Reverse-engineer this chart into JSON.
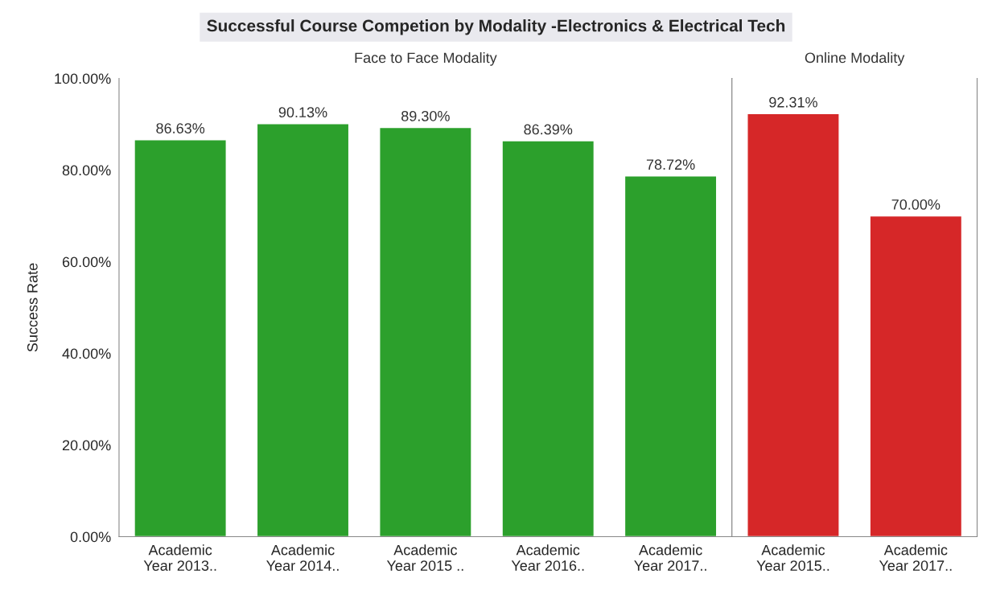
{
  "chart_data": [
    {
      "type": "bar",
      "title": "Successful Course Competion by Modality -Electronics & Electrical Tech",
      "subtitle": "Face to Face Modality",
      "ylabel": "Success Rate",
      "categories": [
        "Academic Year 2013..",
        "Academic Year 2014..",
        "Academic Year 2015 ..",
        "Academic Year 2016..",
        "Academic Year 2017.."
      ],
      "values": [
        86.63,
        90.13,
        89.3,
        86.39,
        78.72
      ],
      "color": "#2ca02c",
      "value_labels": [
        "86.63%",
        "90.13%",
        "89.30%",
        "86.39%",
        "78.72%"
      ],
      "ylim": [
        0,
        100
      ],
      "yticks": [
        {
          "value": 0,
          "label": "0.00%"
        },
        {
          "value": 20,
          "label": "20.00%"
        },
        {
          "value": 40,
          "label": "40.00%"
        },
        {
          "value": 60,
          "label": "60.00%"
        },
        {
          "value": 80,
          "label": "80.00%"
        },
        {
          "value": 100,
          "label": "100.00%"
        }
      ],
      "grid": false
    },
    {
      "type": "bar",
      "subtitle": "Online Modality",
      "categories": [
        "Academic Year 2015..",
        "Academic Year 2017.."
      ],
      "values": [
        92.31,
        70.0
      ],
      "color": "#d62728",
      "value_labels": [
        "92.31%",
        "70.00%"
      ],
      "ylim": [
        0,
        100
      ],
      "tick_labels": "x",
      "grid": false
    }
  ]
}
